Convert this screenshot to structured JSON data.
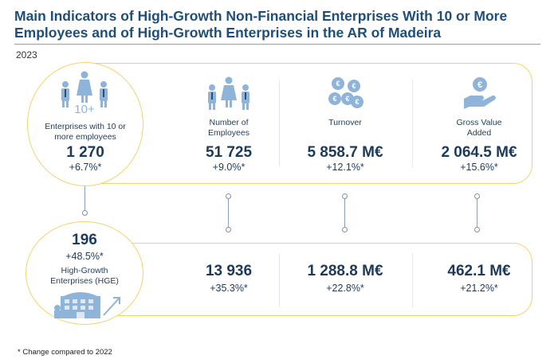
{
  "title": "Main Indicators of High-Growth Non-Financial Enterprises With 10 or More Employees and of High-Growth Enterprises in the AR of Madeira",
  "year": "2023",
  "top": {
    "enterprises": {
      "label": "Enterprises with 10 or more employees",
      "icon_badge": "10+",
      "value": "1 270",
      "change": "+6.7%*"
    },
    "employees": {
      "label": "Number of Employees",
      "value": "51 725",
      "change": "+9.0%*"
    },
    "turnover": {
      "label": "Turnover",
      "value": "5 858.7 M€",
      "change": "+12.1%*"
    },
    "gva": {
      "label": "Gross Value Added",
      "value": "2 064.5 M€",
      "change": "+15.6%*"
    }
  },
  "bottom": {
    "hge": {
      "value": "196",
      "change": "+48.5%*",
      "label": "High-Growth Enterprises (HGE)"
    },
    "employees": {
      "value": "13 936",
      "change": "+35.3%*"
    },
    "turnover": {
      "value": "1 288.8 M€",
      "change": "+22.8%*"
    },
    "gva": {
      "value": "462.1 M€",
      "change": "+21.2%*"
    }
  },
  "icons": [
    "people-group-icon",
    "people-icon",
    "coins-icon",
    "hand-coin-icon",
    "building-growth-icon"
  ],
  "colors": {
    "accent": "#f3d36a",
    "icon": "#8fb4d9",
    "text": "#1c3a5c",
    "title": "#1f4e79"
  },
  "footnote": "* Change compared to 2022"
}
